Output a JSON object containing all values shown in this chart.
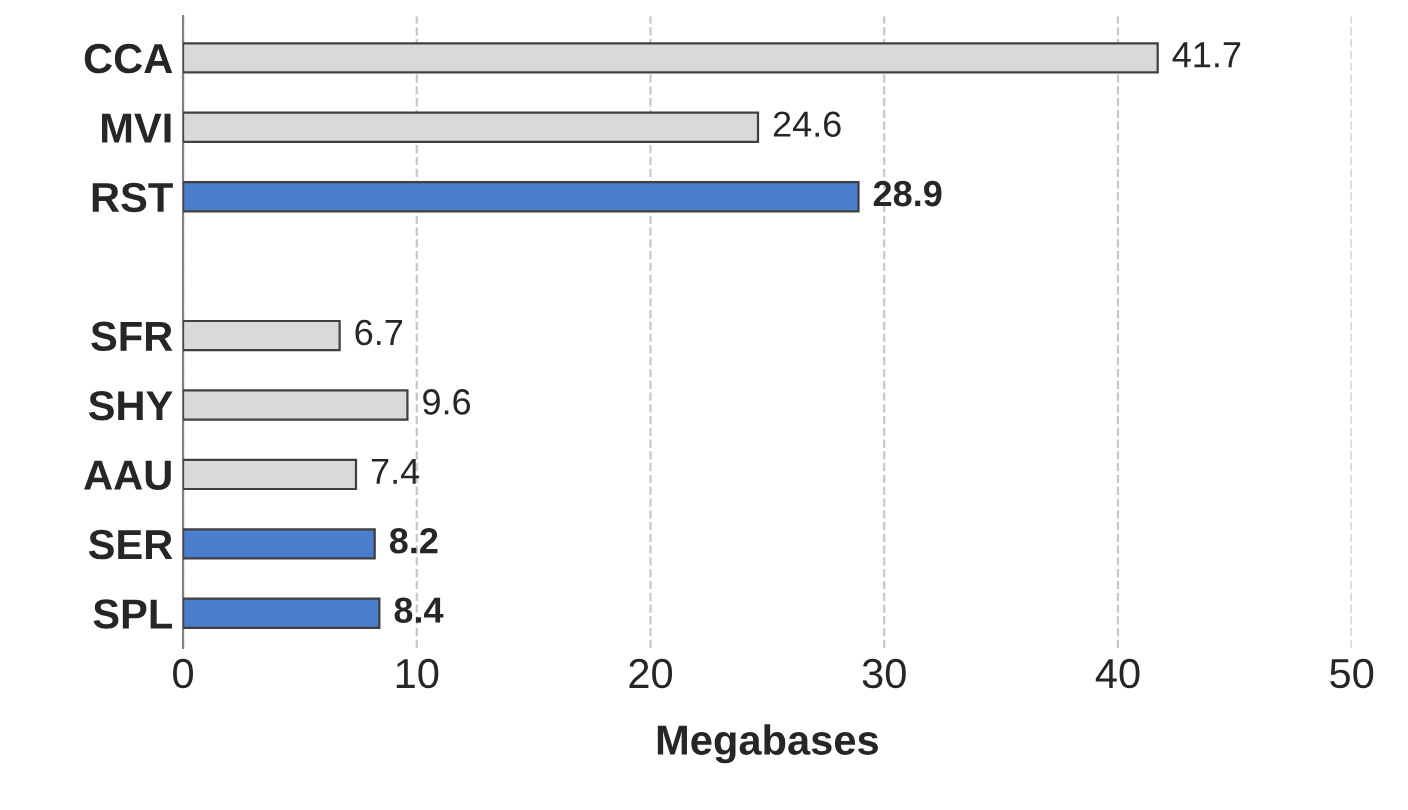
{
  "chart_data": {
    "type": "bar",
    "orientation": "horizontal",
    "xlabel": "Megabases",
    "categories": [
      "CCA",
      "MVI",
      "RST",
      null,
      "SFR",
      "SHY",
      "AAU",
      "SER",
      "SPL"
    ],
    "values": [
      41.7,
      24.6,
      28.9,
      null,
      6.7,
      9.6,
      7.4,
      8.2,
      8.4
    ],
    "colors": [
      "#d9d9d9",
      "#d9d9d9",
      "#4a7dcc",
      null,
      "#d9d9d9",
      "#d9d9d9",
      "#d9d9d9",
      "#4a7dcc",
      "#4a7dcc"
    ],
    "value_labels": [
      "41.7",
      "24.6",
      "28.9",
      null,
      "6.7",
      "9.6",
      "7.4",
      "8.2",
      "8.4"
    ],
    "xlim": [
      0,
      50
    ],
    "xticks": [
      0,
      10,
      20,
      30,
      40,
      50
    ],
    "grid": "x"
  }
}
